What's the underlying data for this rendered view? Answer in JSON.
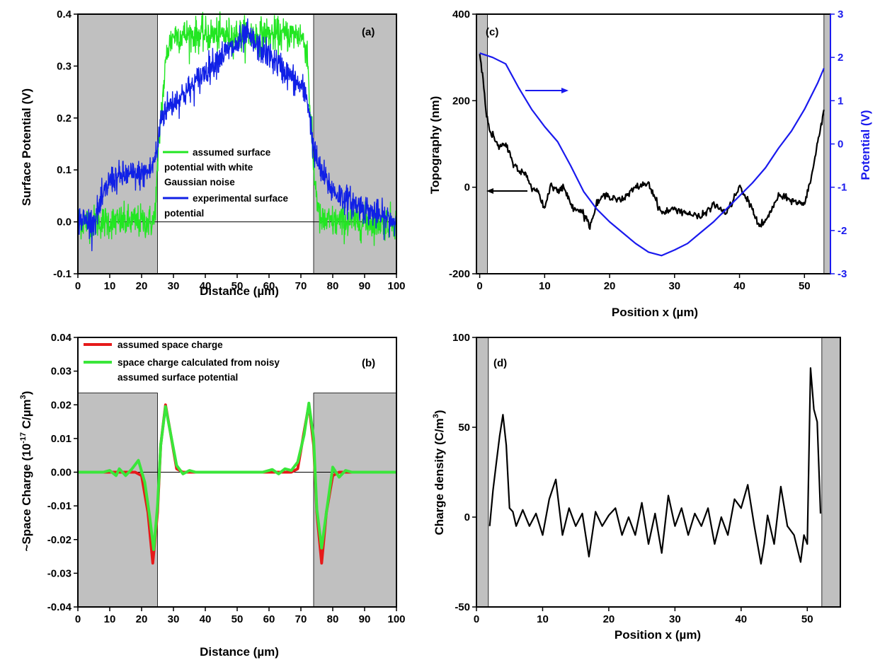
{
  "chart_data": [
    {
      "type": "line",
      "panel_label": "(a)",
      "xlabel": "Distance (µm)",
      "ylabel": "Surface Potential (V)",
      "xlim": [
        0,
        100
      ],
      "ylim": [
        -0.1,
        0.4
      ],
      "x_ticks": [
        0,
        10,
        20,
        30,
        40,
        50,
        60,
        70,
        80,
        90,
        100
      ],
      "y_ticks": [
        -0.1,
        0.0,
        0.1,
        0.2,
        0.3,
        0.4
      ],
      "x_tick_labels": [
        "0",
        "10",
        "20",
        "30",
        "40",
        "50",
        "60",
        "70",
        "80",
        "90",
        "100"
      ],
      "y_tick_labels": [
        "-0.1",
        "0.0",
        "0.1",
        "0.2",
        "0.3",
        "0.4"
      ],
      "shaded_x_ranges": [
        [
          0,
          25
        ],
        [
          74,
          100
        ]
      ],
      "reference_line_y": 0,
      "legend_position": "center",
      "series": [
        {
          "name": "assumed surface potential with white Gaussian noise",
          "color": "#22e622",
          "x": [
            0,
            24,
            25,
            26,
            28,
            30,
            70,
            72,
            73,
            74,
            76,
            100
          ],
          "y": [
            0.0,
            0.0,
            0.1,
            0.2,
            0.33,
            0.36,
            0.36,
            0.33,
            0.2,
            0.1,
            0.0,
            0.0
          ]
        },
        {
          "name": "experimental surface potential",
          "color": "#1020e6",
          "x": [
            0,
            5,
            10,
            15,
            20,
            23,
            25,
            26,
            28,
            32,
            36,
            40,
            45,
            50,
            53,
            56,
            60,
            65,
            70,
            72,
            74,
            76,
            80,
            85,
            90,
            95,
            100
          ],
          "y": [
            0.005,
            0.0,
            0.08,
            0.09,
            0.09,
            0.1,
            0.14,
            0.2,
            0.22,
            0.24,
            0.26,
            0.29,
            0.32,
            0.34,
            0.36,
            0.34,
            0.32,
            0.29,
            0.26,
            0.24,
            0.14,
            0.1,
            0.06,
            0.04,
            0.025,
            0.01,
            0.0
          ]
        }
      ]
    },
    {
      "type": "line",
      "panel_label": "(b)",
      "xlabel": "Distance (µm)",
      "ylabel": "~Space Charge (10",
      "ylabel_sup": "-17",
      "ylabel_unit": " C/µm",
      "ylabel_sup2": "3",
      "ylabel_end": ")",
      "xlim": [
        0,
        100
      ],
      "ylim": [
        -0.04,
        0.04
      ],
      "x_ticks": [
        0,
        10,
        20,
        30,
        40,
        50,
        60,
        70,
        80,
        90,
        100
      ],
      "y_ticks": [
        -0.04,
        -0.03,
        -0.02,
        -0.01,
        0.0,
        0.01,
        0.02,
        0.03,
        0.04
      ],
      "x_tick_labels": [
        "0",
        "10",
        "20",
        "30",
        "40",
        "50",
        "60",
        "70",
        "80",
        "90",
        "100"
      ],
      "y_tick_labels": [
        "-0.04",
        "-0.03",
        "-0.02",
        "-0.01",
        "0.00",
        "0.01",
        "0.02",
        "0.03",
        "0.04"
      ],
      "shaded_x_ranges": [
        [
          0,
          25
        ],
        [
          74,
          100
        ]
      ],
      "shade_top_y": 0.0235,
      "reference_line_y": 0,
      "legend_position": "top-left",
      "series": [
        {
          "name": "assumed space charge",
          "color": "#e61a1a",
          "x": [
            0,
            18,
            20,
            22,
            23.5,
            25,
            26,
            27.5,
            29,
            31,
            33,
            67,
            69,
            71,
            72.5,
            74,
            75,
            76.5,
            78,
            80,
            82,
            100
          ],
          "y": [
            0,
            0,
            -0.001,
            -0.012,
            -0.027,
            -0.012,
            0.008,
            0.02,
            0.012,
            0.001,
            0,
            0,
            0.001,
            0.012,
            0.02,
            0.008,
            -0.012,
            -0.027,
            -0.012,
            -0.001,
            0,
            0
          ]
        },
        {
          "name": "space charge calculated from noisy assumed surface potential",
          "color": "#3ae63a",
          "x": [
            0,
            8,
            10,
            12,
            13,
            15,
            17,
            19,
            21,
            22.5,
            23.8,
            25,
            26,
            27.5,
            29,
            31,
            33,
            35,
            37,
            39,
            58,
            61,
            63,
            65,
            67,
            69,
            71,
            72.5,
            74,
            75,
            76.5,
            78,
            80,
            82,
            84,
            86,
            100
          ],
          "y": [
            0,
            0,
            0.0005,
            -0.001,
            0.001,
            -0.001,
            0.001,
            0.0035,
            -0.003,
            -0.013,
            -0.023,
            -0.01,
            0.008,
            0.0195,
            0.012,
            0.002,
            -0.0005,
            0.0005,
            0,
            0,
            0,
            0.0008,
            -0.0005,
            0.001,
            0.0005,
            0.003,
            0.011,
            0.0205,
            0.01,
            -0.011,
            -0.0225,
            -0.012,
            0.0015,
            -0.0015,
            0.0005,
            0,
            0
          ]
        }
      ]
    },
    {
      "type": "line",
      "panel_label": "(c)",
      "xlabel": "Position x (µm)",
      "ylabel": "Topography (nm)",
      "ylabel_right": "Potential (V)",
      "xlim": [
        -0.5,
        54
      ],
      "ylim": [
        -200,
        400
      ],
      "ylim_right": [
        -3,
        3
      ],
      "x_ticks": [
        0,
        10,
        20,
        30,
        40,
        50
      ],
      "y_ticks": [
        -200,
        0,
        200,
        400
      ],
      "y_ticks_right": [
        -3,
        -2,
        -1,
        0,
        1,
        2,
        3
      ],
      "x_tick_labels": [
        "0",
        "10",
        "20",
        "30",
        "40",
        "50"
      ],
      "y_tick_labels": [
        "-200",
        "0",
        "200",
        "400"
      ],
      "y_tick_labels_right": [
        "-3",
        "-2",
        "-1",
        "0",
        "1",
        "2",
        "3"
      ],
      "shaded_x_ranges": [
        [
          -0.5,
          1.2
        ],
        [
          53,
          54
        ]
      ],
      "series": [
        {
          "name": "Topography",
          "axis": "left",
          "color": "#000000",
          "x": [
            0,
            0.5,
            1,
            1.5,
            2,
            3,
            4,
            5,
            6,
            7,
            8,
            9,
            10,
            11,
            12,
            13,
            14,
            15,
            16,
            17,
            18,
            19,
            20,
            22,
            24,
            26,
            28,
            30,
            32,
            34,
            36,
            38,
            40,
            42,
            43,
            44,
            46,
            48,
            50,
            51,
            52,
            53
          ],
          "y": [
            310,
            260,
            170,
            130,
            120,
            90,
            100,
            60,
            40,
            30,
            0,
            -10,
            -50,
            10,
            -10,
            0,
            -40,
            -50,
            -60,
            -90,
            -40,
            -20,
            -20,
            -30,
            0,
            10,
            -60,
            -50,
            -60,
            -70,
            -40,
            -60,
            0,
            -50,
            -90,
            -80,
            -20,
            -30,
            -40,
            20,
            100,
            180
          ]
        },
        {
          "name": "Potential",
          "axis": "right",
          "color": "#1a1aee",
          "x": [
            0,
            2,
            4,
            6,
            8,
            10,
            12,
            14,
            16,
            18,
            20,
            22,
            24,
            26,
            28,
            30,
            32,
            34,
            36,
            38,
            40,
            42,
            44,
            46,
            48,
            50,
            52,
            53
          ],
          "y": [
            2.1,
            2.0,
            1.85,
            1.3,
            0.8,
            0.4,
            0.05,
            -0.5,
            -1.1,
            -1.5,
            -1.8,
            -2.05,
            -2.3,
            -2.5,
            -2.58,
            -2.45,
            -2.3,
            -2.05,
            -1.8,
            -1.5,
            -1.2,
            -0.9,
            -0.55,
            -0.1,
            0.3,
            0.8,
            1.4,
            1.75
          ]
        }
      ]
    },
    {
      "type": "line",
      "panel_label": "(d)",
      "xlabel": "Position x (µm)",
      "ylabel": "Charge density (C/m",
      "ylabel_sup": "3",
      "ylabel_end": ")",
      "xlim": [
        0,
        55
      ],
      "ylim": [
        -50,
        100
      ],
      "x_ticks": [
        0,
        10,
        20,
        30,
        40,
        50
      ],
      "y_ticks": [
        -50,
        0,
        50,
        100
      ],
      "x_tick_labels": [
        "0",
        "10",
        "20",
        "30",
        "40",
        "50"
      ],
      "y_tick_labels": [
        "-50",
        "0",
        "50",
        "100"
      ],
      "shaded_x_ranges": [
        [
          0,
          1.8
        ],
        [
          52.2,
          55
        ]
      ],
      "series": [
        {
          "name": "Charge density",
          "color": "#000000",
          "x": [
            2,
            2.5,
            3,
            3.5,
            4,
            4.5,
            5,
            5.5,
            6,
            7,
            8,
            9,
            10,
            11,
            12,
            13,
            14,
            15,
            16,
            17,
            18,
            19,
            20,
            21,
            22,
            23,
            24,
            25,
            26,
            27,
            28,
            29,
            30,
            31,
            32,
            33,
            34,
            35,
            36,
            37,
            38,
            39,
            40,
            41,
            42,
            43,
            43.5,
            44,
            45,
            46,
            47,
            48,
            49,
            49.5,
            50,
            50.5,
            51,
            51.5,
            52
          ],
          "y": [
            -5,
            15,
            30,
            45,
            57,
            40,
            5,
            3,
            -5,
            4,
            -5,
            2,
            -10,
            10,
            21,
            -10,
            5,
            -5,
            2,
            -22,
            3,
            -5,
            1,
            5,
            -10,
            0,
            -10,
            8,
            -15,
            2,
            -20,
            12,
            -5,
            5,
            -10,
            2,
            -5,
            5,
            -15,
            0,
            -10,
            10,
            5,
            18,
            -5,
            -26,
            -15,
            1,
            -15,
            17,
            -5,
            -10,
            -25,
            -10,
            -15,
            83,
            60,
            53,
            2
          ]
        }
      ]
    }
  ]
}
